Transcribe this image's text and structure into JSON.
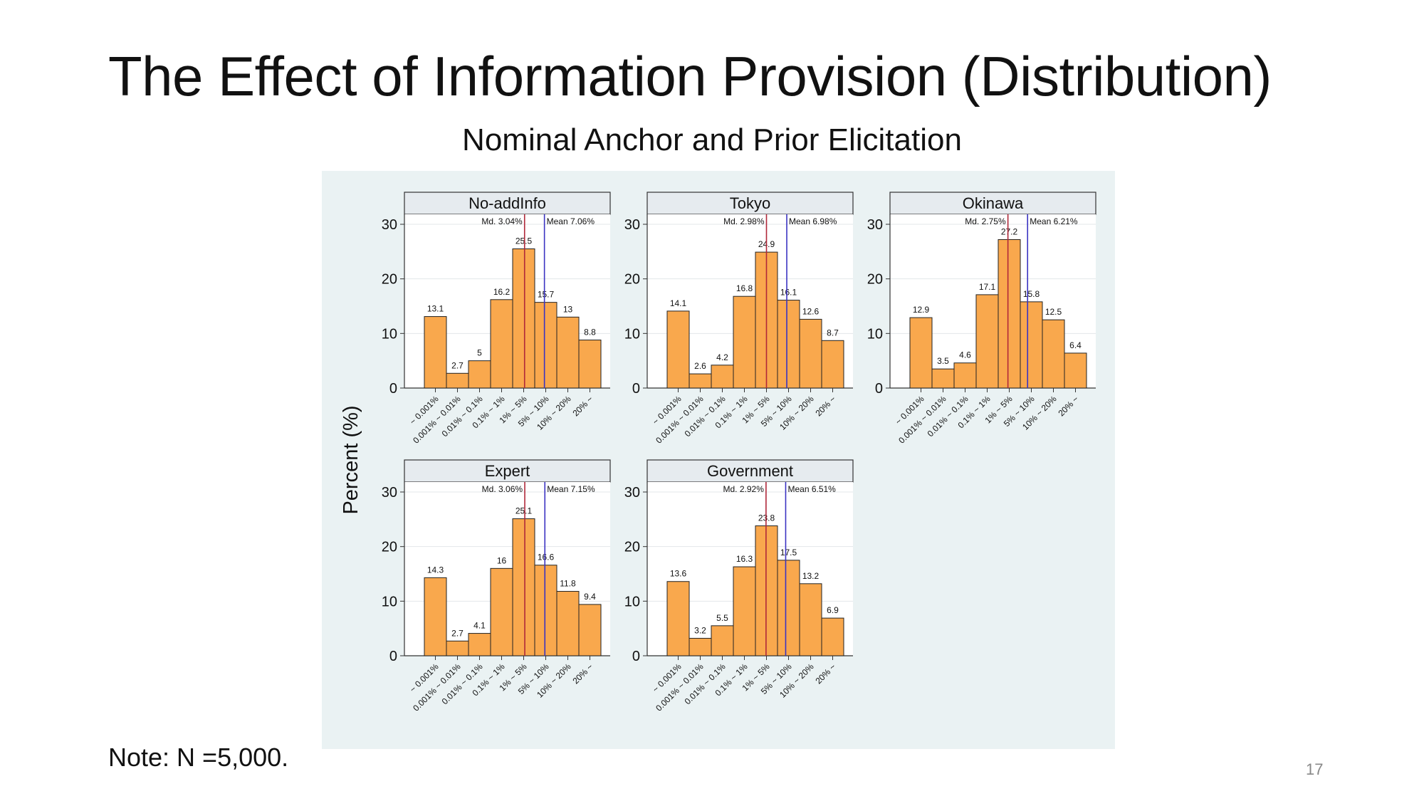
{
  "slide": {
    "title": "The Effect of Information Provision (Distribution)",
    "figure_title": "Nominal Anchor and Prior Elicitation",
    "note": "Note: N =5,000.",
    "page_number": "17"
  },
  "colors": {
    "bar_fill": "#f9a84d",
    "bar_stroke": "#222222",
    "median_line": "#b0283a",
    "mean_line": "#3a33c2",
    "panel_bg": "#eaf2f3",
    "header_fill": "#e6ebef"
  },
  "chart_data": {
    "type": "bar",
    "ylabel": "Percent (%)",
    "xlabel": "",
    "ylim": [
      0,
      30
    ],
    "yticks": [
      0,
      10,
      20,
      30
    ],
    "categories": [
      "~ 0.001%",
      "0.001% ~ 0.01%",
      "0.01% ~ 0.1%",
      "0.1% ~ 1%",
      "1% ~ 5%",
      "5% ~ 10%",
      "10% ~ 20%",
      "20% ~"
    ],
    "panels": [
      {
        "name": "No-addInfo",
        "values": [
          13.1,
          2.7,
          5,
          16.2,
          25.5,
          15.7,
          13,
          8.8
        ],
        "value_labels": [
          "13.1",
          "2.7",
          "5",
          "16.2",
          "25.5",
          "15.7",
          "13",
          "8.8"
        ],
        "median_label": "Md. 3.04%",
        "mean_label": "Mean 7.06%",
        "median_position": 4.54,
        "mean_position": 5.44
      },
      {
        "name": "Tokyo",
        "values": [
          14.1,
          2.6,
          4.2,
          16.8,
          24.9,
          16.1,
          12.6,
          8.7
        ],
        "value_labels": [
          "14.1",
          "2.6",
          "4.2",
          "16.8",
          "24.9",
          "16.1",
          "12.6",
          "8.7"
        ],
        "median_label": "Md. 2.98%",
        "mean_label": "Mean 6.98%",
        "median_position": 4.5,
        "mean_position": 5.42
      },
      {
        "name": "Okinawa",
        "values": [
          12.9,
          3.5,
          4.6,
          17.1,
          27.2,
          15.8,
          12.5,
          6.4
        ],
        "value_labels": [
          "12.9",
          "3.5",
          "4.6",
          "17.1",
          "27.2",
          "15.8",
          "12.5",
          "6.4"
        ],
        "median_label": "Md. 2.75%",
        "mean_label": "Mean 6.21%",
        "median_position": 4.44,
        "mean_position": 5.33
      },
      {
        "name": "Expert",
        "values": [
          14.3,
          2.7,
          4.1,
          16,
          25.1,
          16.6,
          11.8,
          9.4
        ],
        "value_labels": [
          "14.3",
          "2.7",
          "4.1",
          "16",
          "25.1",
          "16.6",
          "11.8",
          "9.4"
        ],
        "median_label": "Md. 3.06%",
        "mean_label": "Mean 7.15%",
        "median_position": 4.55,
        "mean_position": 5.46
      },
      {
        "name": "Government",
        "values": [
          13.6,
          3.2,
          5.5,
          16.3,
          23.8,
          17.5,
          13.2,
          6.9
        ],
        "value_labels": [
          "13.6",
          "3.2",
          "5.5",
          "16.3",
          "23.8",
          "17.5",
          "13.2",
          "6.9"
        ],
        "median_label": "Md. 2.92%",
        "mean_label": "Mean 6.51%",
        "median_position": 4.48,
        "mean_position": 5.37
      }
    ]
  }
}
